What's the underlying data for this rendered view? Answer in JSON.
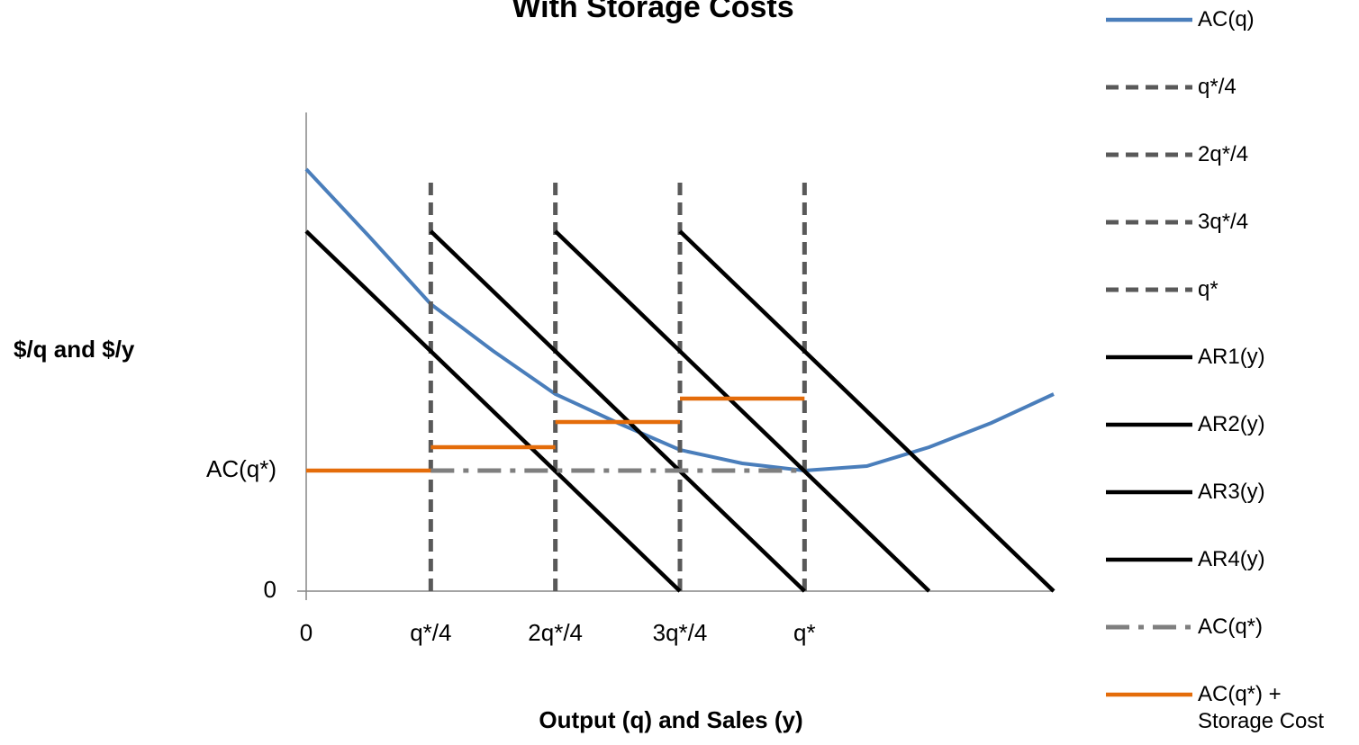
{
  "chart_data": {
    "type": "line",
    "title": "With Storage Costs",
    "xlabel": "Output (q) and Sales (y)",
    "ylabel": "$/q and $/y",
    "xlim": [
      0,
      6
    ],
    "ylim": [
      0,
      5.32
    ],
    "xticks": [
      0,
      {
        "value": 1,
        "label": "q*/4"
      },
      {
        "value": 2,
        "label": "2q*/4"
      },
      {
        "value": 3,
        "label": "3q*/4"
      },
      {
        "value": 4,
        "label": "q*"
      }
    ],
    "yticks": [
      0,
      {
        "value": 1.34,
        "label": "AC(q*)"
      }
    ],
    "grid": false,
    "legend": "right",
    "series": [
      {
        "name": "AC(q)",
        "color": "#4a7ebb",
        "style": "solid",
        "x": [
          0,
          0.5,
          1,
          1.5,
          2,
          2.5,
          3,
          3.5,
          4,
          4.5,
          5,
          5.5,
          6
        ],
        "values": [
          4.69,
          3.95,
          3.19,
          2.67,
          2.19,
          1.87,
          1.57,
          1.42,
          1.34,
          1.39,
          1.6,
          1.87,
          2.19
        ]
      },
      {
        "name": "q*/4",
        "color": "#595959",
        "style": "dashed",
        "x": [
          1,
          1
        ],
        "values": [
          0,
          4.59
        ]
      },
      {
        "name": "2q*/4",
        "color": "#595959",
        "style": "dashed",
        "x": [
          2,
          2
        ],
        "values": [
          0,
          4.59
        ]
      },
      {
        "name": "3q*/4",
        "color": "#595959",
        "style": "dashed",
        "x": [
          3,
          3
        ],
        "values": [
          0,
          4.59
        ]
      },
      {
        "name": "q*",
        "color": "#595959",
        "style": "dashed",
        "x": [
          4,
          4
        ],
        "values": [
          0,
          4.59
        ]
      },
      {
        "name": "AR1(y)",
        "color": "#000000",
        "style": "solid",
        "x": [
          0,
          3
        ],
        "values": [
          4.0,
          0
        ]
      },
      {
        "name": "AR2(y)",
        "color": "#000000",
        "style": "solid",
        "x": [
          1,
          4
        ],
        "values": [
          4.0,
          0
        ]
      },
      {
        "name": "AR3(y)",
        "color": "#000000",
        "style": "solid",
        "x": [
          2,
          5
        ],
        "values": [
          4.0,
          0
        ]
      },
      {
        "name": "AR4(y)",
        "color": "#000000",
        "style": "solid",
        "x": [
          3,
          6
        ],
        "values": [
          4.0,
          0
        ]
      },
      {
        "name": "AC(q*)",
        "color": "#7f7f7f",
        "style": "dashdot",
        "x": [
          1,
          4
        ],
        "values": [
          1.34,
          1.34
        ]
      },
      {
        "name": "AC(q*) + Storage Cost",
        "color": "#e46c0a",
        "style": "solid",
        "x": [
          0,
          1,
          1,
          1,
          2,
          2,
          2,
          3,
          3,
          3,
          4
        ],
        "values": [
          1.34,
          1.34,
          null,
          1.6,
          1.6,
          null,
          1.88,
          1.88,
          null,
          2.14,
          2.14
        ]
      }
    ]
  }
}
